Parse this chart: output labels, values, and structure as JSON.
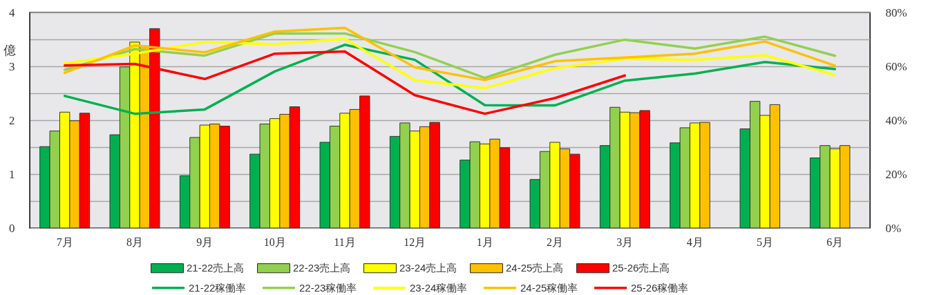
{
  "chart_data": {
    "type": "bar",
    "ylabel": "億",
    "categories": [
      "7月",
      "8月",
      "9月",
      "10月",
      "11月",
      "12月",
      "1月",
      "2月",
      "3月",
      "4月",
      "5月",
      "6月"
    ],
    "ylim": [
      0,
      4
    ],
    "yticks": [
      0,
      {
        "value": 0.5,
        "label": null
      },
      1,
      {
        "value": 1.5,
        "label": null
      },
      2,
      {
        "value": 2.5,
        "label": null
      },
      3,
      {
        "value": 3.5,
        "label": null
      },
      4
    ],
    "y2lim": [
      0,
      80
    ],
    "y2ticks": [
      {
        "value": 0,
        "label": "0%"
      },
      {
        "value": 20,
        "label": "20%"
      },
      {
        "value": 40,
        "label": "40%"
      },
      {
        "value": 60,
        "label": "60%"
      },
      {
        "value": 80,
        "label": "80%"
      }
    ],
    "grid": "y",
    "legend": "bottom",
    "series": [
      {
        "name": "21-22売上高",
        "color": "#00b050",
        "values": [
          1.51,
          1.73,
          0.97,
          1.37,
          1.59,
          1.7,
          1.26,
          0.9,
          1.53,
          1.58,
          1.84,
          1.3
        ]
      },
      {
        "name": "22-23売上高",
        "color": "#92d050",
        "values": [
          1.8,
          2.99,
          1.68,
          1.93,
          1.89,
          1.95,
          1.6,
          1.42,
          2.24,
          1.86,
          2.35,
          1.53
        ]
      },
      {
        "name": "23-24売上高",
        "color": "#ffff00",
        "values": [
          2.15,
          3.45,
          1.91,
          2.03,
          2.13,
          1.8,
          1.56,
          1.59,
          2.15,
          1.95,
          2.09,
          1.47
        ]
      },
      {
        "name": "24-25売上高",
        "color": "#ffc000",
        "values": [
          1.99,
          3.38,
          1.93,
          2.11,
          2.2,
          1.88,
          1.65,
          1.47,
          2.14,
          1.96,
          2.29,
          1.53
        ]
      },
      {
        "name": "25-26売上高",
        "color": "#ff0000",
        "values": [
          2.13,
          3.7,
          1.89,
          2.25,
          2.45,
          1.96,
          1.49,
          1.37,
          2.18,
          null,
          null,
          null
        ]
      },
      {
        "name": "21-22稼働率",
        "type": "line",
        "axis": "y2",
        "color": "#00b050",
        "values": [
          49.0,
          42.4,
          44.0,
          58.1,
          68.0,
          62.4,
          45.6,
          45.5,
          54.7,
          57.3,
          61.6,
          59.0
        ]
      },
      {
        "name": "22-23稼働率",
        "type": "line",
        "axis": "y2",
        "color": "#92d050",
        "values": [
          58.7,
          66.4,
          64.0,
          72.2,
          72.2,
          65.3,
          55.7,
          64.3,
          69.9,
          66.6,
          71.0,
          63.9
        ]
      },
      {
        "name": "23-24稼働率",
        "type": "line",
        "axis": "y2",
        "color": "#ffff00",
        "values": [
          61.1,
          64.7,
          69.0,
          68.2,
          70.2,
          54.9,
          51.9,
          59.3,
          62.8,
          62.4,
          64.1,
          56.8
        ]
      },
      {
        "name": "24-25稼働率",
        "type": "line",
        "axis": "y2",
        "color": "#ffc000",
        "values": [
          57.6,
          67.7,
          65.2,
          72.9,
          74.3,
          59.6,
          54.9,
          61.9,
          63.3,
          64.7,
          69.2,
          60.2
        ]
      },
      {
        "name": "25-26稼働率",
        "type": "line",
        "axis": "y2",
        "color": "#ff0000",
        "values": [
          60.3,
          60.9,
          55.3,
          64.7,
          65.5,
          49.3,
          42.4,
          48.2,
          56.6,
          null,
          null,
          null
        ]
      }
    ]
  }
}
